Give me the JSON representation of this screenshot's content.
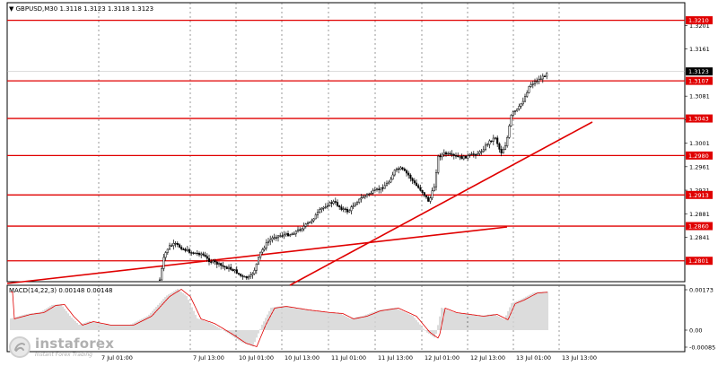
{
  "header": {
    "symbol": "GBPUSD,M30",
    "ohlc": "1.3118 1.3123 1.3118 1.3123"
  },
  "macd_header": "MACD(14,22,3) 0.00148 0.00148",
  "logo": {
    "name": "instaforex",
    "slogan": "Instant Forex Trading"
  },
  "colors": {
    "level": "#e00000",
    "price_tag_bg": "#000000",
    "candles": "#000000",
    "macd_hist": "#a8a8a8",
    "macd_signal": "#e00000"
  },
  "price_axis": {
    "ticks": [
      "1.3201",
      "1.3161",
      "1.3081",
      "1.3041",
      "1.3001",
      "1.2961",
      "1.2921",
      "1.2881",
      "1.2841"
    ],
    "current_price": "1.3123"
  },
  "levels": [
    {
      "label": "1.3210",
      "price": 1.321
    },
    {
      "label": "1.3107",
      "price": 1.3107
    },
    {
      "label": "1.3043",
      "price": 1.3043
    },
    {
      "label": "1.2980",
      "price": 1.298
    },
    {
      "label": "1.2913",
      "price": 1.2913
    },
    {
      "label": "1.2860",
      "price": 1.286
    },
    {
      "label": "1.2801",
      "price": 1.2801
    }
  ],
  "macd_axis": {
    "top": "0.00173",
    "zero": "0.00",
    "bottom": "-0.00085"
  },
  "time_axis": [
    "7 Jul 01:00",
    "7 Jul 13:00",
    "10 Jul 01:00",
    "10 Jul 13:00",
    "11 Jul 01:00",
    "11 Jul 13:00",
    "12 Jul 01:00",
    "12 Jul 13:00",
    "13 Jul 01:00",
    "13 Jul 13:00"
  ]
}
